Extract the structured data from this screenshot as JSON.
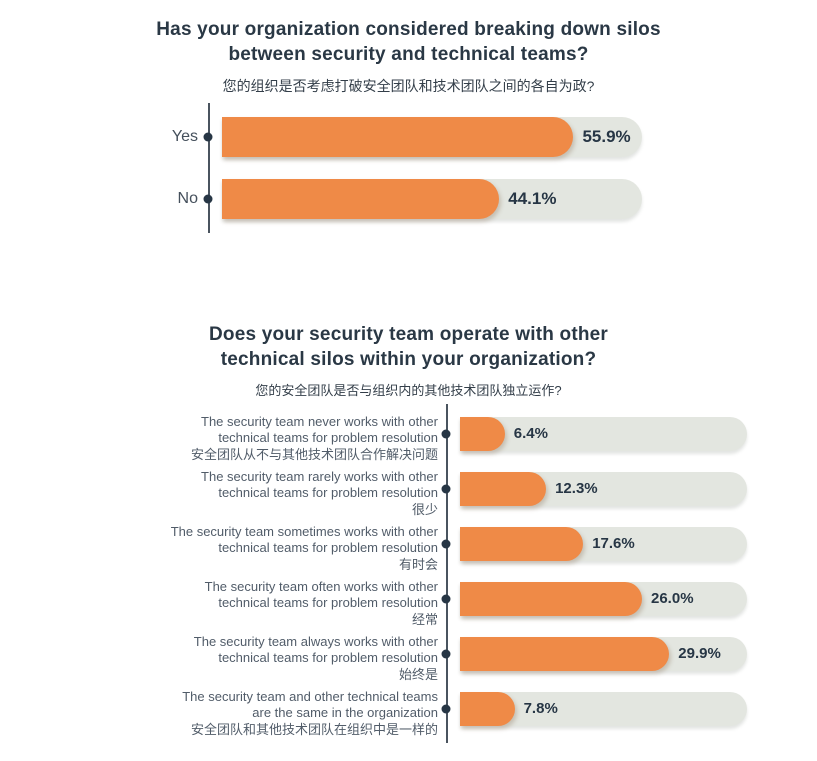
{
  "colors": {
    "bar_orange": "#EF8A47",
    "track_gray": "#E3E6E0",
    "title_navy": "#2A3845",
    "value_navy": "#273645",
    "label_gray": "#515C69",
    "axis_line": "#4A545F",
    "background": "#FFFFFF"
  },
  "chart_data": [
    {
      "type": "bar",
      "orientation": "horizontal",
      "title": "Has your organization considered breaking down silos between security and technical teams?",
      "title_lines": [
        "Has your organization considered breaking down silos",
        "between security and technical teams?"
      ],
      "subtitle": "您的组织是否考虑打破安全团队和技术团队之间的各自为政?",
      "unit": "%",
      "xlim": [
        0,
        66.8
      ],
      "grid": false,
      "legend": false,
      "rows": [
        {
          "category": "Yes",
          "value": 55.9,
          "label": "55.9%"
        },
        {
          "category": "No",
          "value": 44.1,
          "label": "44.1%"
        }
      ]
    },
    {
      "type": "bar",
      "orientation": "horizontal",
      "title": "Does your security team operate with other technical silos within your organization?",
      "title_lines": [
        "Does your security team operate with other",
        "technical silos within your organization?"
      ],
      "subtitle": "您的安全团队是否与组织内的其他技术团队独立运作?",
      "unit": "%",
      "xlim": [
        0,
        41
      ],
      "grid": false,
      "legend": false,
      "rows": [
        {
          "en_line1": "The security team never works with other",
          "en_line2": "technical teams for problem resolution",
          "zh": "安全团队从不与其他技术团队合作解决问题",
          "value": 6.4,
          "label": "6.4%"
        },
        {
          "en_line1": "The security team rarely works with other",
          "en_line2": "technical teams for problem resolution",
          "zh": "很少",
          "value": 12.3,
          "label": "12.3%"
        },
        {
          "en_line1": "The security team sometimes works with other",
          "en_line2": "technical teams for problem resolution",
          "zh": "有时会",
          "value": 17.6,
          "label": "17.6%"
        },
        {
          "en_line1": "The security team often works with other",
          "en_line2": "technical teams for problem resolution",
          "zh": "经常",
          "value": 26.0,
          "label": "26.0%"
        },
        {
          "en_line1": "The security team always works with other",
          "en_line2": "technical teams for problem resolution",
          "zh": "始终是",
          "value": 29.9,
          "label": "29.9%"
        },
        {
          "en_line1": "The security team and other technical teams",
          "en_line2": "are the same in the organization",
          "zh": "安全团队和其他技术团队在组织中是一样的",
          "value": 7.8,
          "label": "7.8%"
        }
      ]
    }
  ]
}
